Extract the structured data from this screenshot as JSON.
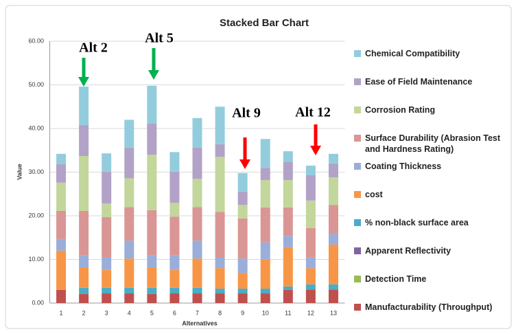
{
  "chart_data": {
    "type": "stacked_bar",
    "title": "Stacked Bar Chart",
    "x_label": "Alternatives",
    "y_label": "Value",
    "categories": [
      "1",
      "2",
      "3",
      "4",
      "5",
      "6",
      "7",
      "8",
      "9",
      "10",
      "11",
      "12",
      "13"
    ],
    "ylim": [
      0,
      60
    ],
    "yticks": [
      {
        "value": 0,
        "label": "0.00"
      },
      {
        "value": 10,
        "label": "10.00"
      },
      {
        "value": 20,
        "label": "20.00"
      },
      {
        "value": 30,
        "label": "30.00"
      },
      {
        "value": 40,
        "label": "40.00"
      },
      {
        "value": 50,
        "label": "50.00"
      },
      {
        "value": 60,
        "label": "60.00"
      }
    ],
    "grid": true,
    "legend": "right",
    "series": [
      {
        "name": "Manufacturability (Throughput)",
        "color": "#c0504d",
        "values": [
          3.0,
          2.1,
          2.2,
          2.2,
          2.1,
          2.2,
          2.2,
          2.2,
          2.2,
          2.2,
          3.0,
          3.1,
          3.1
        ]
      },
      {
        "name": "Detection Time",
        "color": "#9bbb59",
        "values": [
          0,
          0,
          0,
          0,
          0,
          0,
          0,
          0,
          0,
          0,
          0,
          0,
          0
        ]
      },
      {
        "name": "Apparent Reflectivity",
        "color": "#8064a2",
        "values": [
          0,
          0,
          0,
          0,
          0,
          0,
          0,
          0,
          0,
          0,
          0,
          0,
          0
        ]
      },
      {
        "name": "% non-black surface area",
        "color": "#4bacc6",
        "values": [
          0,
          1.4,
          1.3,
          1.3,
          1.4,
          1.3,
          1.3,
          1.1,
          1.1,
          1.1,
          0.8,
          1.2,
          1.2
        ]
      },
      {
        "name": "cost",
        "color": "#f79646",
        "values": [
          9.0,
          4.7,
          4.1,
          6.7,
          4.7,
          4.1,
          6.7,
          4.7,
          3.6,
          6.8,
          9.0,
          3.7,
          9.1
        ]
      },
      {
        "name": "Coating Thickness",
        "color": "#9aaed9",
        "values": [
          2.7,
          2.7,
          2.8,
          4.1,
          2.7,
          3.3,
          4.1,
          2.4,
          3.3,
          3.8,
          2.6,
          2.5,
          2.5
        ]
      },
      {
        "name": "Surface Durability (Abrasion Test and Hardness Rating)",
        "color": "#d99694",
        "values": [
          6.4,
          10.2,
          9.3,
          7.7,
          10.4,
          8.9,
          7.7,
          10.5,
          9.2,
          8.0,
          6.5,
          6.7,
          6.6
        ]
      },
      {
        "name": "Corrosion Rating",
        "color": "#c3d69b",
        "values": [
          6.5,
          12.6,
          3.1,
          6.6,
          12.7,
          3.2,
          6.5,
          12.6,
          3.1,
          6.3,
          6.3,
          6.3,
          6.3
        ]
      },
      {
        "name": "Ease of Field Maintenance",
        "color": "#b2a2c7",
        "values": [
          4.2,
          7.1,
          7.3,
          7.0,
          7.1,
          7.1,
          7.1,
          2.9,
          3.0,
          2.8,
          4.2,
          5.8,
          3.2
        ]
      },
      {
        "name": "Chemical Compatibility",
        "color": "#93cddd",
        "values": [
          2.4,
          8.8,
          4.2,
          6.4,
          8.7,
          4.5,
          6.8,
          8.6,
          4.3,
          6.6,
          2.4,
          2.2,
          2.2
        ]
      }
    ],
    "annotations": [
      {
        "text": "Alt 2",
        "color": "#00b050"
      },
      {
        "text": "Alt 5",
        "color": "#00b050"
      },
      {
        "text": "Alt 9",
        "color": "#ff0000"
      },
      {
        "text": "Alt 12",
        "color": "#ff0000"
      }
    ]
  }
}
